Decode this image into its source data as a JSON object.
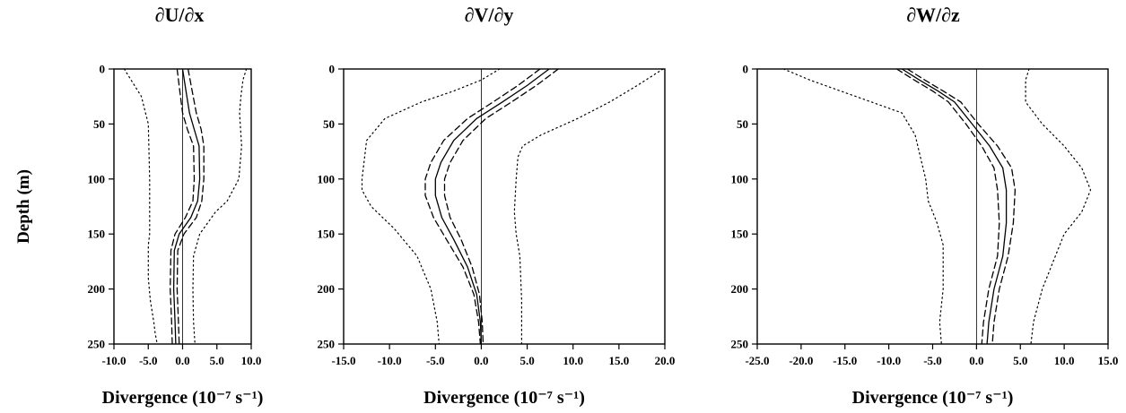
{
  "chart_data": [
    {
      "type": "line",
      "title": "∂U/∂x",
      "xlabel": "Divergence (10⁻⁷ s⁻¹)",
      "ylabel": "Depth (m)",
      "xlim": [
        -10,
        10
      ],
      "ylim": [
        0,
        250
      ],
      "y_inverted": true,
      "xticks": [
        "-10.0",
        "-5.0",
        "0.0",
        "5.0",
        "10.0"
      ],
      "yticks": [
        "0",
        "50",
        "100",
        "150",
        "200",
        "250"
      ],
      "zero_line": true,
      "grid": false,
      "series": [
        {
          "style": "solid",
          "x": [
            0,
            0.5,
            1,
            1.7,
            2.4,
            2.5,
            2.2,
            1.2,
            -0.5,
            -1.2,
            -1.3,
            -1.1,
            -1
          ],
          "y": [
            0,
            20,
            40,
            55,
            70,
            100,
            120,
            135,
            150,
            165,
            200,
            230,
            250
          ]
        },
        {
          "style": "dashed",
          "x": [
            0.8,
            1.4,
            2,
            2.7,
            3.1,
            3.1,
            2.8,
            2,
            0.2,
            -0.7,
            -0.8,
            -0.6,
            -0.5
          ],
          "y": [
            0,
            20,
            40,
            55,
            70,
            100,
            120,
            135,
            150,
            165,
            200,
            230,
            250
          ]
        },
        {
          "style": "dashed",
          "x": [
            -0.8,
            -0.4,
            0,
            0.7,
            1.6,
            1.7,
            1.5,
            0.4,
            -1.1,
            -1.7,
            -1.8,
            -1.6,
            -1.5
          ],
          "y": [
            0,
            20,
            40,
            55,
            70,
            100,
            120,
            135,
            150,
            165,
            200,
            230,
            250
          ]
        },
        {
          "style": "dotted",
          "x": [
            -8.5,
            -7.5,
            -6,
            -5,
            -4.8,
            -4.8,
            -4.8,
            -5,
            -5,
            -4.7,
            -4.2,
            -4,
            -3.7
          ],
          "y": [
            0,
            10,
            25,
            50,
            100,
            130,
            150,
            160,
            190,
            210,
            230,
            240,
            250
          ]
        },
        {
          "style": "dotted",
          "x": [
            9.3,
            8.8,
            8.5,
            8.3,
            8.6,
            8.2,
            6.5,
            4.8,
            2.5,
            1.6,
            1.5,
            1.6,
            1.8
          ],
          "y": [
            0,
            10,
            25,
            40,
            70,
            100,
            120,
            130,
            150,
            170,
            200,
            230,
            250
          ]
        }
      ]
    },
    {
      "type": "line",
      "title": "∂V/∂y",
      "xlabel": "Divergence (10⁻⁷ s⁻¹)",
      "ylabel": "",
      "xlim": [
        -15,
        20
      ],
      "ylim": [
        0,
        250
      ],
      "y_inverted": true,
      "xticks": [
        "-15.0",
        "-10.0",
        "-5.0",
        "0.0",
        "5.0",
        "10.0",
        "15.0",
        "20.0"
      ],
      "yticks": [
        "0",
        "50",
        "100",
        "150",
        "200",
        "250"
      ],
      "zero_line": true,
      "grid": false,
      "series": [
        {
          "style": "solid",
          "x": [
            7.4,
            5,
            2.3,
            -0.5,
            -3,
            -4.4,
            -5,
            -5,
            -4.3,
            -3,
            -1.5,
            -0.5,
            -0.1,
            0
          ],
          "y": [
            0,
            15,
            30,
            45,
            65,
            85,
            100,
            115,
            135,
            155,
            180,
            205,
            230,
            250
          ]
        },
        {
          "style": "dashed",
          "x": [
            8.4,
            6,
            3.3,
            0.5,
            -2,
            -3.4,
            -4,
            -4,
            -3.4,
            -2.2,
            -1,
            -0.2,
            0.1,
            0.2
          ],
          "y": [
            0,
            15,
            30,
            45,
            65,
            85,
            100,
            115,
            135,
            155,
            180,
            205,
            230,
            250
          ]
        },
        {
          "style": "dashed",
          "x": [
            6.4,
            4,
            1.3,
            -1.5,
            -4.1,
            -5.5,
            -6.1,
            -6.1,
            -5.2,
            -3.8,
            -2,
            -0.8,
            -0.3,
            -0.1
          ],
          "y": [
            0,
            15,
            30,
            45,
            65,
            85,
            100,
            115,
            135,
            155,
            180,
            205,
            230,
            250
          ]
        },
        {
          "style": "dotted",
          "x": [
            2,
            0,
            -3,
            -6.5,
            -10.5,
            -12.5,
            -13,
            -13,
            -12,
            -9.5,
            -7,
            -5.5,
            -4.8,
            -4.6
          ],
          "y": [
            0,
            10,
            20,
            30,
            45,
            65,
            100,
            110,
            125,
            145,
            170,
            200,
            230,
            250
          ]
        },
        {
          "style": "dotted",
          "x": [
            19.8,
            17,
            14,
            10.5,
            6.5,
            4.5,
            4,
            3.8,
            3.6,
            3.8,
            4.2,
            4.4,
            4.4
          ],
          "y": [
            0,
            15,
            30,
            45,
            60,
            70,
            80,
            100,
            130,
            150,
            170,
            210,
            250
          ]
        }
      ]
    },
    {
      "type": "line",
      "title": "∂W/∂z",
      "xlabel": "Divergence (10⁻⁷ s⁻¹)",
      "ylabel": "",
      "xlim": [
        -25,
        15
      ],
      "ylim": [
        0,
        250
      ],
      "y_inverted": true,
      "xticks": [
        "-25.0",
        "-20.0",
        "-15.0",
        "-10.0",
        "-5.0",
        "0.0",
        "5.0",
        "10.0",
        "15.0"
      ],
      "yticks": [
        "0",
        "50",
        "100",
        "150",
        "200",
        "250"
      ],
      "zero_line": true,
      "grid": false,
      "series": [
        {
          "style": "solid",
          "x": [
            -8.5,
            -6.5,
            -4.4,
            -2.5,
            -0.5,
            1.5,
            3,
            3.4,
            3.4,
            3,
            2,
            1.4,
            1.2
          ],
          "y": [
            0,
            10,
            20,
            30,
            50,
            70,
            90,
            110,
            140,
            170,
            200,
            230,
            250
          ]
        },
        {
          "style": "dashed",
          "x": [
            -7.9,
            -5.9,
            -3.8,
            -1.8,
            0.2,
            2.4,
            4,
            4.4,
            4.2,
            3.6,
            2.6,
            2,
            1.8
          ],
          "y": [
            0,
            10,
            20,
            30,
            50,
            70,
            90,
            110,
            140,
            170,
            200,
            230,
            250
          ]
        },
        {
          "style": "dashed",
          "x": [
            -9.1,
            -7.1,
            -5,
            -3.2,
            -1.2,
            0.6,
            2,
            2.4,
            2.6,
            2.4,
            1.4,
            0.8,
            0.6
          ],
          "y": [
            0,
            10,
            20,
            30,
            50,
            70,
            90,
            110,
            140,
            170,
            200,
            230,
            250
          ]
        },
        {
          "style": "dotted",
          "x": [
            -22,
            -19,
            -15.5,
            -12,
            -8.5,
            -7,
            -5.8,
            -5.5,
            -4.5,
            -3.8,
            -3.8,
            -4.2,
            -4
          ],
          "y": [
            0,
            10,
            20,
            30,
            40,
            60,
            100,
            120,
            140,
            160,
            200,
            230,
            250
          ]
        },
        {
          "style": "dotted",
          "x": [
            6,
            5.6,
            5.6,
            7.5,
            10,
            12,
            13,
            12,
            10,
            9,
            7.5,
            6.5,
            6.2
          ],
          "y": [
            0,
            10,
            30,
            50,
            70,
            90,
            110,
            130,
            150,
            170,
            200,
            230,
            250
          ]
        }
      ]
    }
  ]
}
